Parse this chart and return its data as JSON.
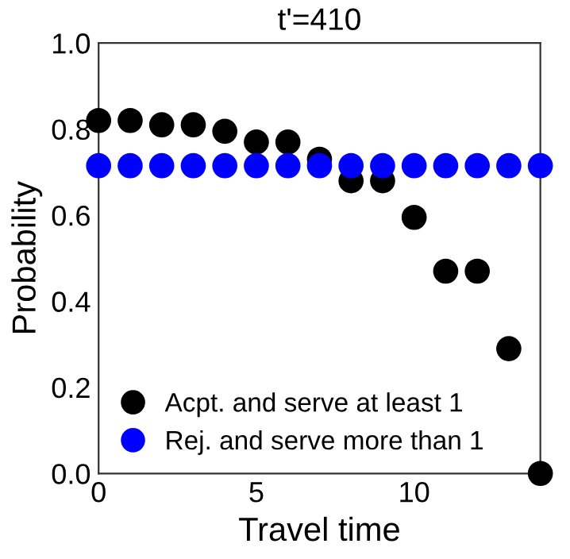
{
  "chart_data": {
    "type": "scatter",
    "title": "t'=410",
    "xlabel": "Travel time",
    "ylabel": "Probability",
    "x": [
      0,
      1,
      2,
      3,
      4,
      5,
      6,
      7,
      8,
      9,
      10,
      11,
      12,
      13,
      14
    ],
    "series": [
      {
        "name": "Acpt. and serve at least 1",
        "color": "#000000",
        "values": [
          0.82,
          0.82,
          0.81,
          0.81,
          0.795,
          0.77,
          0.77,
          0.73,
          0.68,
          0.68,
          0.595,
          0.47,
          0.47,
          0.29,
          0.0
        ]
      },
      {
        "name": "Rej. and serve more than 1",
        "color": "#0000ff",
        "values": [
          0.715,
          0.715,
          0.715,
          0.715,
          0.715,
          0.715,
          0.715,
          0.715,
          0.715,
          0.715,
          0.715,
          0.715,
          0.715,
          0.715,
          0.715
        ]
      }
    ],
    "xlim": [
      0,
      14
    ],
    "xticks": [
      0,
      5,
      10
    ],
    "ylim": [
      0,
      1
    ],
    "yticks": [
      {
        "value": 0,
        "label": "0.0"
      },
      0.2,
      0.4,
      0.6,
      0.8,
      {
        "value": 1,
        "label": "1.0"
      }
    ],
    "marker": "circle",
    "legend": "bottom left",
    "grid": false
  }
}
